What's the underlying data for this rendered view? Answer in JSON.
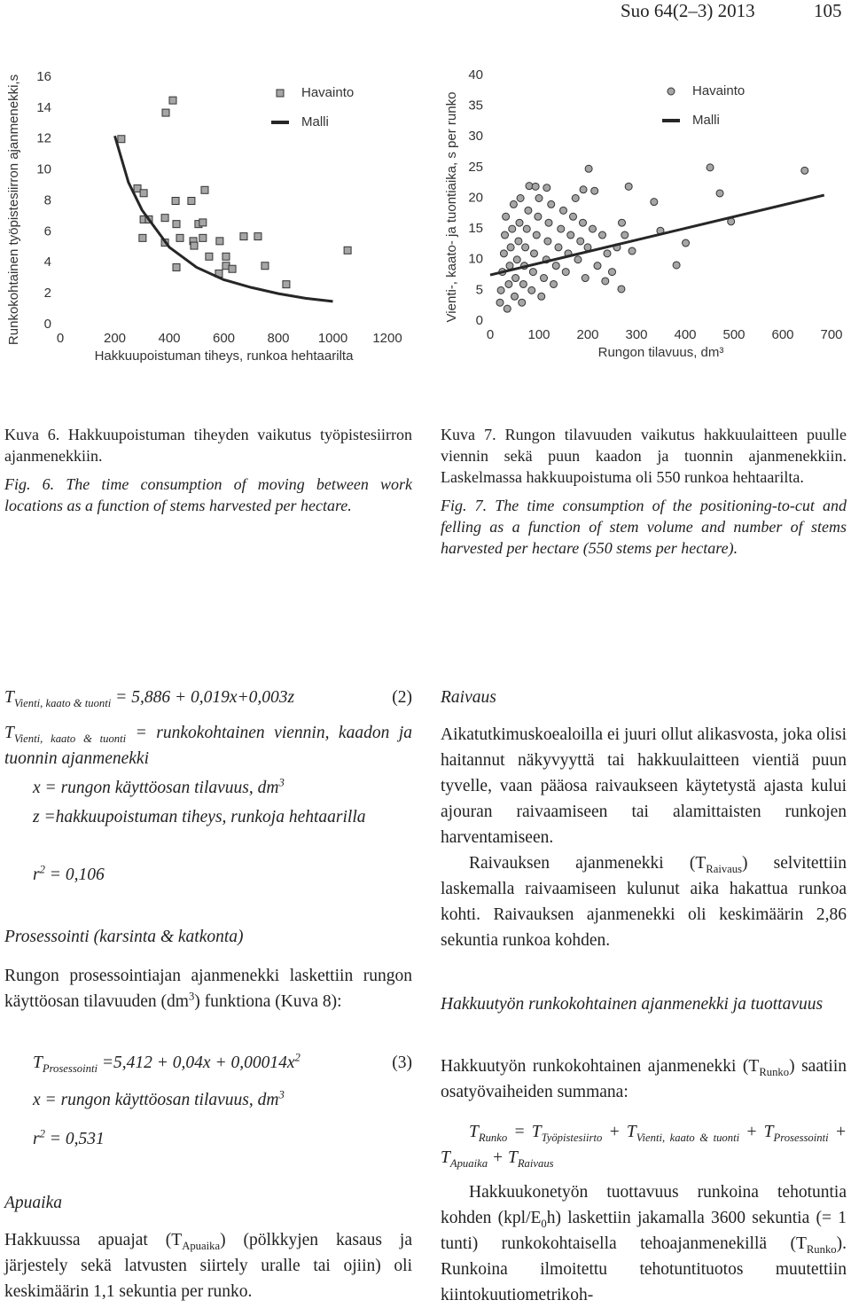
{
  "header": {
    "journal": "Suo 64(2–3) 2013",
    "page": "105"
  },
  "chart_data": [
    {
      "type": "scatter",
      "y_label": "Runkokohtainen työpistesiirron ajanmenekki,s",
      "x_label": "Hakkuupoistuman tiheys, runkoa hehtaarilta",
      "xlim": [
        0,
        1200
      ],
      "xticks": [
        0,
        200,
        400,
        600,
        800,
        1000,
        1200
      ],
      "ylim": [
        0,
        16
      ],
      "yticks": [
        0,
        2,
        4,
        6,
        8,
        10,
        12,
        14,
        16
      ],
      "legend": "upper right",
      "series": [
        {
          "name": "Havainto",
          "color": "#a6a6a6",
          "marker": "square",
          "x": [
            224,
            387,
            413,
            283,
            306,
            481,
            530,
            423,
            306,
            325,
            384,
            426,
            507,
            523,
            302,
            384,
            439,
            488,
            491,
            523,
            585,
            673,
            725,
            426,
            546,
            608,
            608,
            631,
            582,
            751,
            829,
            1054
          ],
          "values": [
            12.0,
            13.7,
            14.5,
            8.8,
            8.5,
            8.0,
            8.7,
            8.0,
            6.8,
            6.8,
            6.9,
            6.5,
            6.5,
            6.6,
            5.6,
            5.3,
            5.6,
            5.4,
            5.1,
            5.6,
            5.4,
            5.7,
            5.7,
            3.7,
            4.4,
            4.4,
            3.8,
            3.6,
            3.3,
            3.8,
            2.6,
            4.8
          ]
        },
        {
          "name": "Malli",
          "color": "#262626",
          "type": "line",
          "x": [
            200,
            250,
            300,
            400,
            500,
            600,
            700,
            800,
            900,
            1000
          ],
          "values": [
            12.2,
            9.2,
            7.4,
            5.0,
            3.7,
            2.9,
            2.4,
            2.0,
            1.7,
            1.5
          ]
        }
      ]
    },
    {
      "type": "scatter",
      "y_label": "Vienti-, kaato- ja tuontiaika, s per runko",
      "x_label": "Rungon tilavuus, dm³",
      "xlim": [
        0,
        700
      ],
      "xticks": [
        0,
        100,
        200,
        300,
        400,
        500,
        600,
        700
      ],
      "ylim": [
        0,
        40
      ],
      "yticks": [
        0,
        5,
        10,
        15,
        20,
        25,
        30,
        35,
        40
      ],
      "legend": "upper right",
      "series": [
        {
          "name": "Havainto",
          "color": "#a6a6a6",
          "marker": "circle",
          "x": [
            20,
            22,
            25,
            28,
            30,
            32,
            35,
            38,
            40,
            42,
            45,
            48,
            50,
            52,
            55,
            58,
            60,
            62,
            65,
            68,
            70,
            72,
            75,
            78,
            80,
            85,
            88,
            90,
            95,
            98,
            100,
            105,
            110,
            115,
            118,
            120,
            125,
            130,
            135,
            140,
            145,
            150,
            155,
            160,
            165,
            170,
            175,
            180,
            185,
            190,
            195,
            200,
            210,
            220,
            230,
            240,
            250,
            260,
            270,
            451,
            471,
            645,
            494,
            401,
            382,
            349,
            284,
            336,
            276,
            291,
            269,
            236,
            93,
            116,
            191,
            214,
            202
          ],
          "values": [
            3,
            5,
            8,
            11,
            14,
            17,
            2,
            6,
            9,
            12,
            15,
            19,
            4,
            7,
            10,
            13,
            16,
            20,
            3,
            6,
            9,
            12,
            15,
            18,
            22,
            5,
            8,
            11,
            14,
            17,
            20,
            4,
            7,
            10,
            13,
            16,
            19,
            6,
            9,
            12,
            15,
            18,
            8,
            11,
            14,
            17,
            20,
            10,
            13,
            16,
            7,
            12,
            15,
            9,
            14,
            11,
            8,
            12,
            16,
            25.0,
            20.8,
            24.5,
            16.2,
            12.7,
            9.1,
            14.7,
            21.9,
            19.4,
            14.0,
            11.4,
            5.2,
            6.5,
            21.9,
            21.7,
            21.4,
            21.2,
            24.8
          ]
        },
        {
          "name": "Malli",
          "color": "#262626",
          "type": "line",
          "x": [
            0,
            685
          ],
          "values": [
            7.5,
            20.5
          ]
        }
      ]
    }
  ],
  "captions": {
    "fig6_fi": "Kuva 6. Hakkuupoistuman tiheyden vaikutus työpistesiirron ajanmenekkiin.",
    "fig6_en": "Fig. 6. The time consumption of moving between work locations as a function of stems harvested per hectare.",
    "fig7_fi": "Kuva 7. Rungon tilavuuden vaikutus hakkuulaitteen puulle viennin sekä puun kaadon ja tuonnin ajanmenekkiin. Laskelmassa hakkuupoistuma oli 550 runkoa hehtaarilta.",
    "fig7_en": "Fig. 7. The time consumption of the positioning-to-cut and felling as a function of stem volume and number of stems harvested per hectare (550 stems per hectare)."
  },
  "left_column": [
    {
      "runs": [
        "T",
        {
          "sub": "Vienti, kaato & tuonti"
        },
        " = 5,886 + 0,019x+0,003z"
      ],
      "number": "(2)"
    },
    {
      "runs": [
        "T",
        {
          "sub": "Vienti, kaato & tuonti"
        },
        " = runkokohtainen viennin, kaadon ja tuonnin ajanmenekki"
      ]
    },
    {
      "runs": [
        "x = rungon käyttöosan tilavuus, dm",
        {
          "sup": "3"
        }
      ]
    },
    {
      "runs": [
        "z =hakkuupoistuman tiheys, runkoja hehtaarilla"
      ]
    },
    {
      "runs": [
        "r",
        {
          "sup": "2"
        },
        " = 0,106"
      ]
    },
    {
      "runs": [
        "Prosessointi (karsinta & katkonta)"
      ]
    },
    {
      "runs": [
        "Rungon prosessointiajan ajanmenekki laskettiin rungon käyttöosan tilavuuden (dm",
        {
          "sup": "3"
        },
        ") funktiona (Kuva 8):"
      ]
    },
    {
      "runs": [
        "T",
        {
          "sub": "Prosessointi"
        },
        " =5,412 + 0,04x + 0,00014x",
        {
          "sup": "2"
        }
      ],
      "number": "(3)"
    },
    {
      "runs": [
        "x = rungon käyttöosan tilavuus, dm",
        {
          "sup": "3"
        }
      ]
    },
    {
      "runs": [
        "r",
        {
          "sup": "2"
        },
        " = 0,531"
      ]
    },
    {
      "runs": [
        "Apuaika"
      ]
    },
    {
      "runs": [
        "Hakkuussa apuajat (T",
        {
          "sub": "Apuaika"
        },
        ") (pölkkyjen kasaus ja järjestely sekä latvusten siirtely uralle tai ojiin) oli keskimäärin 1,1 sekuntia per runko."
      ]
    }
  ],
  "right_column": [
    {
      "runs": [
        "Raivaus"
      ]
    },
    {
      "runs": [
        "Aikatutkimuskoealoilla ei juuri ollut alikasvosta, joka olisi haitannut näkyvyyttä tai hakkuulaitteen vientiä puun tyvelle, vaan pääosa raivaukseen käytetystä ajasta kului ajouran raivaamiseen tai alamittaisten runkojen harventamiseen."
      ]
    },
    {
      "runs": [
        "Raivauksen ajanmenekki (T",
        {
          "sub": "Raivaus"
        },
        ") selvitettiin laskemalla raivaamiseen kulunut aika hakattua runkoa kohti. Raivauksen ajanmenekki oli keskimäärin 2,86 sekuntia runkoa kohden."
      ]
    },
    {
      "runs": [
        "Hakkuutyön runkokohtainen ajanmenekki ja tuottavuus"
      ]
    },
    {
      "runs": [
        "Hakkuutyön runkokohtainen ajanmenekki (T",
        {
          "sub": "Runko"
        },
        ") saatiin osatyövaiheiden summana:"
      ]
    },
    {
      "runs": [
        "T",
        {
          "sub": "Runko"
        },
        " = T",
        {
          "sub": "Työpistesiirto"
        },
        " + T",
        {
          "sub": "Vienti, kaato & tuonti"
        },
        " + T",
        {
          "sub": "Prosessointi"
        },
        " + T",
        {
          "sub": "Apuaika"
        },
        " + T",
        {
          "sub": "Raivaus"
        }
      ]
    },
    {
      "runs": [
        "Hakkuukonetyön tuottavuus runkoina tehotuntia kohden (kpl/E",
        {
          "sub": "0"
        },
        "h) laskettiin jakamalla 3600 sekuntia (= 1 tunti) runkokohtaisella tehoajanmenekillä (T",
        {
          "sub": "Runko"
        },
        "). Runkoina ilmoitettu tehotuntituotos muutettiin kiintokuutiometrikoh-"
      ]
    }
  ]
}
